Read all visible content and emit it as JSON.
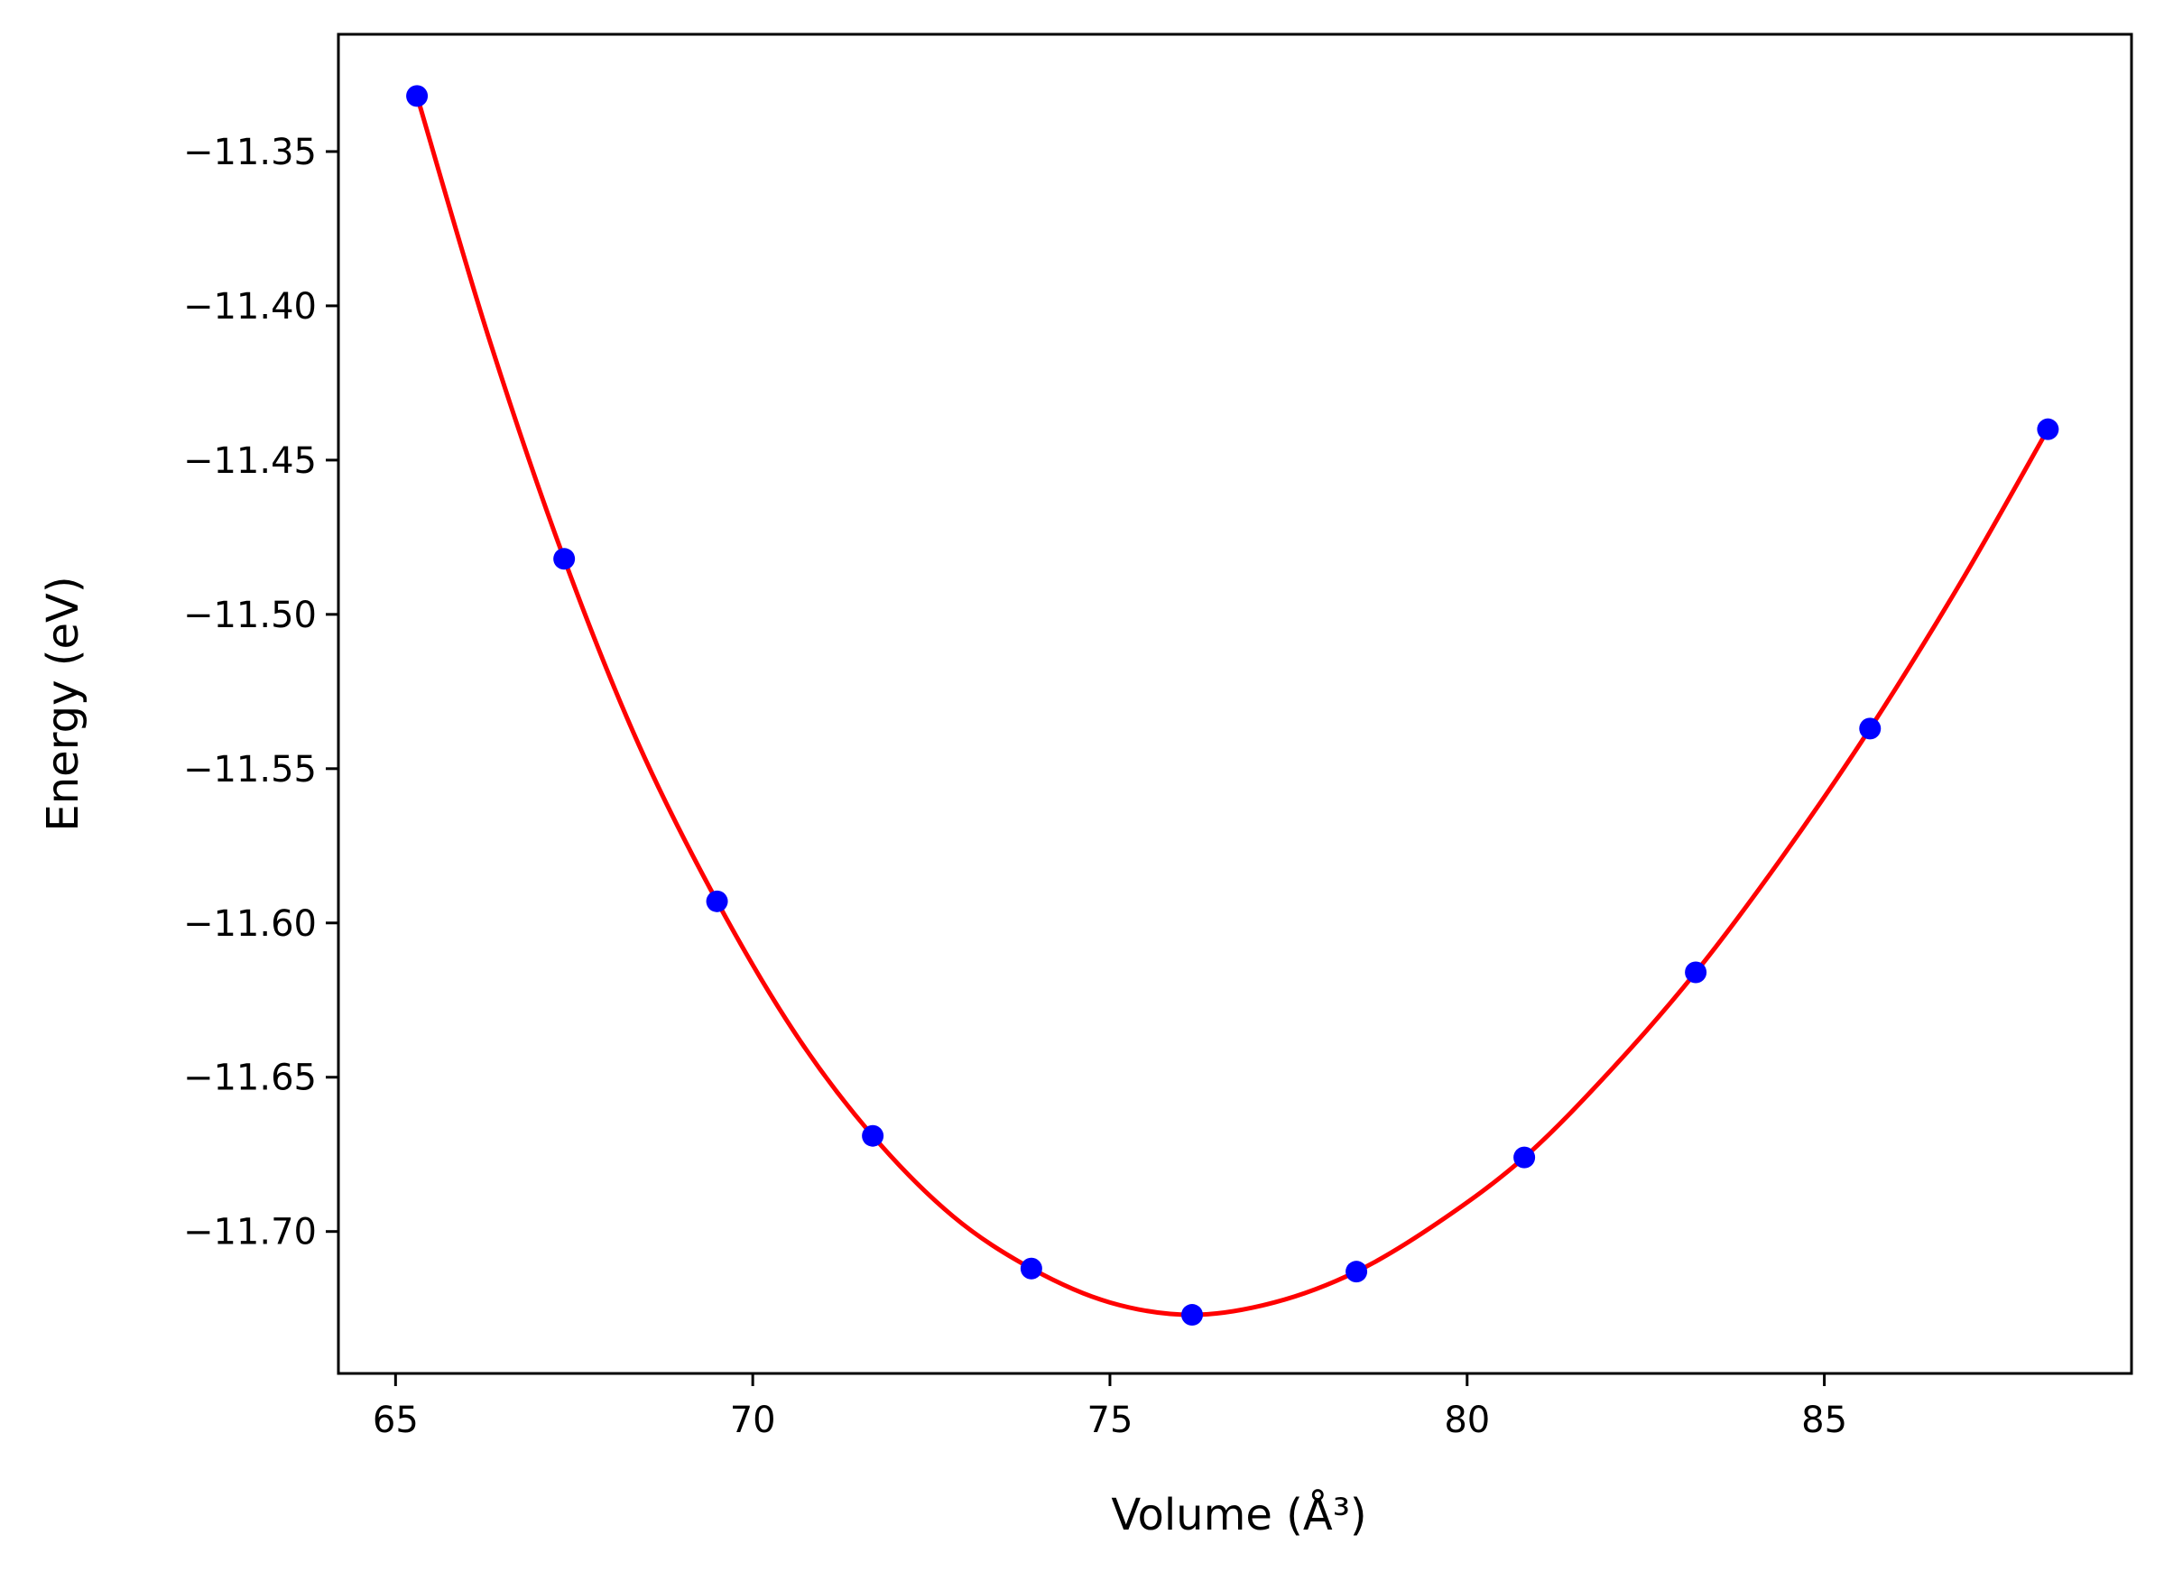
{
  "chart_data": {
    "type": "line",
    "xlabel": "Volume (Å³)",
    "ylabel": "Energy (eV)",
    "xlim": [
      64.2,
      89.3
    ],
    "ylim": [
      -11.746,
      -11.312
    ],
    "x_ticks": [
      65,
      70,
      75,
      80,
      85
    ],
    "x_tick_labels": [
      "65",
      "70",
      "75",
      "80",
      "85"
    ],
    "y_ticks": [
      -11.35,
      -11.4,
      -11.45,
      -11.5,
      -11.55,
      -11.6,
      -11.65,
      -11.7
    ],
    "y_tick_labels": [
      "−11.35",
      "−11.40",
      "−11.45",
      "−11.50",
      "−11.55",
      "−11.60",
      "−11.65",
      "−11.70"
    ],
    "grid": false,
    "series": [
      {
        "kind": "points",
        "color": "#0000ff",
        "x": [
          65.3,
          67.36,
          69.5,
          71.68,
          73.9,
          76.15,
          78.45,
          80.8,
          83.2,
          85.64,
          88.13
        ],
        "y": [
          -11.332,
          -11.482,
          -11.593,
          -11.669,
          -11.712,
          -11.727,
          -11.713,
          -11.676,
          -11.616,
          -11.537,
          -11.44
        ]
      },
      {
        "kind": "fit_line",
        "color": "#ff0000",
        "x": [
          65.3,
          66.3,
          67.36,
          68.4,
          69.5,
          70.6,
          71.68,
          72.8,
          73.9,
          75.0,
          76.15,
          77.3,
          78.45,
          79.6,
          80.8,
          82.0,
          83.2,
          84.4,
          85.64,
          86.9,
          88.13
        ],
        "y": [
          -11.332,
          -11.41,
          -11.482,
          -11.542,
          -11.593,
          -11.636,
          -11.669,
          -11.695,
          -11.712,
          -11.723,
          -11.727,
          -11.723,
          -11.713,
          -11.697,
          -11.676,
          -11.648,
          -11.616,
          -11.579,
          -11.537,
          -11.49,
          -11.44
        ]
      }
    ]
  }
}
